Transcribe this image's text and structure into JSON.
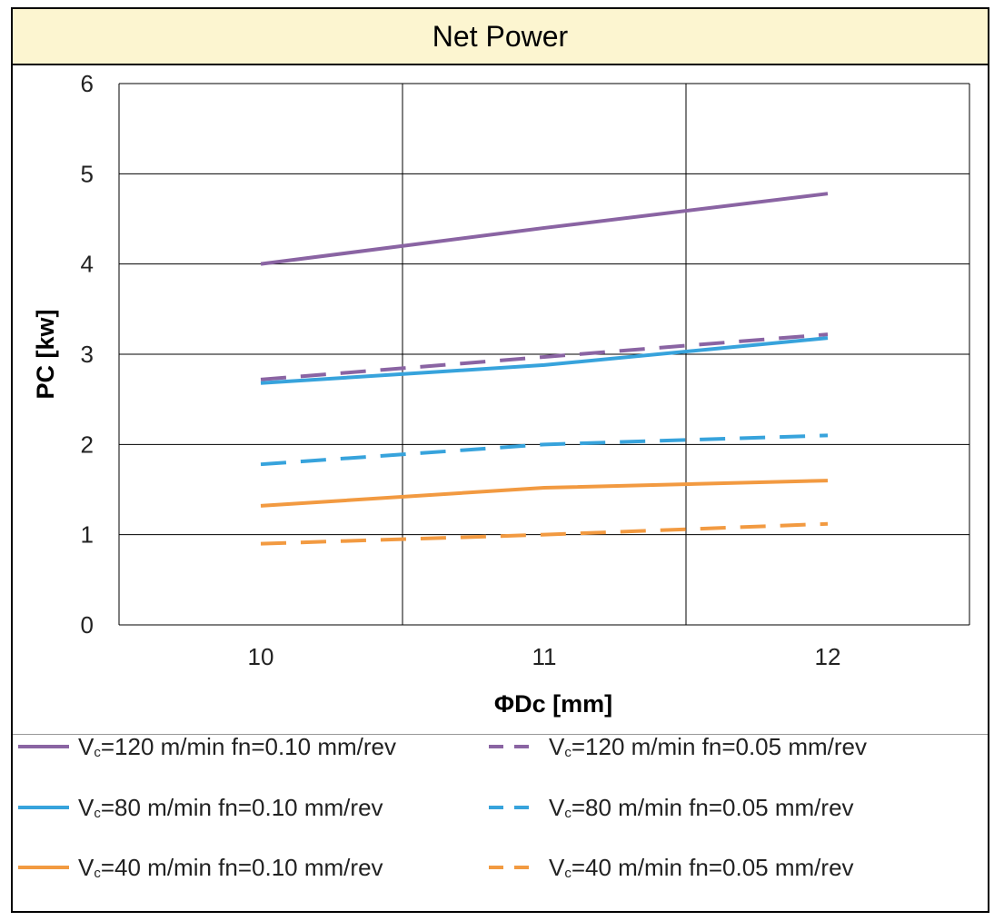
{
  "chart_data": {
    "type": "line",
    "title": "Net Power",
    "xlabel": "ΦDc [mm]",
    "ylabel": "PC [kw]",
    "x_ticks": [
      10,
      11,
      12
    ],
    "y_ticks": [
      0,
      1,
      2,
      3,
      4,
      5,
      6
    ],
    "xlim": [
      9.5,
      12.5
    ],
    "ylim": [
      0,
      6
    ],
    "grid": true,
    "legend_position": "bottom",
    "series": [
      {
        "name": "Vc=120 m/min fn=0.10 mm/rev",
        "color": "#8a64a3",
        "dash": false,
        "x": [
          10,
          11,
          12
        ],
        "y": [
          4.0,
          4.4,
          4.78
        ]
      },
      {
        "name": "Vc=120 m/min fn=0.05 mm/rev",
        "color": "#8a64a3",
        "dash": true,
        "x": [
          10,
          11,
          12
        ],
        "y": [
          2.72,
          2.97,
          3.22
        ]
      },
      {
        "name": "Vc=80 m/min fn=0.10 mm/rev",
        "color": "#37a3dc",
        "dash": false,
        "x": [
          10,
          11,
          12
        ],
        "y": [
          2.68,
          2.88,
          3.18
        ]
      },
      {
        "name": "Vc=80 m/min fn=0.05 mm/rev",
        "color": "#37a3dc",
        "dash": true,
        "x": [
          10,
          11,
          12
        ],
        "y": [
          1.78,
          2.0,
          2.1
        ]
      },
      {
        "name": "Vc=40 m/min fn=0.10 mm/rev",
        "color": "#f29a41",
        "dash": false,
        "x": [
          10,
          11,
          12
        ],
        "y": [
          1.32,
          1.52,
          1.6
        ]
      },
      {
        "name": "Vc=40 m/min fn=0.05 mm/rev",
        "color": "#f29a41",
        "dash": true,
        "x": [
          10,
          11,
          12
        ],
        "y": [
          0.9,
          1.0,
          1.12
        ]
      }
    ]
  },
  "legend": {
    "items": [
      {
        "prefix": "V",
        "sub": "c",
        "rest": "=120 m/min fn=0.10 mm/rev"
      },
      {
        "prefix": "V",
        "sub": "c",
        "rest": "=120 m/min fn=0.05 mm/rev"
      },
      {
        "prefix": "V",
        "sub": "c",
        "rest": "=80 m/min fn=0.10 mm/rev"
      },
      {
        "prefix": "V",
        "sub": "c",
        "rest": "=80 m/min fn=0.05 mm/rev"
      },
      {
        "prefix": "V",
        "sub": "c",
        "rest": "=40 m/min fn=0.10 mm/rev"
      },
      {
        "prefix": "V",
        "sub": "c",
        "rest": "=40 m/min fn=0.05 mm/rev"
      }
    ]
  },
  "colors": {
    "title_background": "#fcf5d0",
    "grid": "#000000"
  }
}
